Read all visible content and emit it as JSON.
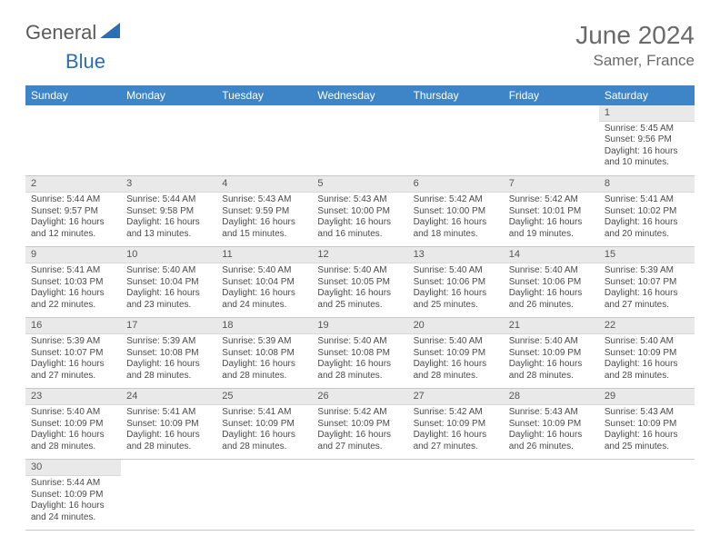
{
  "branding": {
    "logo_part1": "General",
    "logo_part2": "Blue",
    "logo_triangle_color": "#2a6fb5"
  },
  "title": {
    "month": "June 2024",
    "location": "Samer, France"
  },
  "colors": {
    "header_bg": "#3d85c6",
    "header_text": "#ffffff",
    "daynum_bg": "#e9e9e9",
    "cell_border": "#c8c8c8",
    "body_text": "#4a4a4a",
    "title_text": "#6a6a6a"
  },
  "weekdays": [
    "Sunday",
    "Monday",
    "Tuesday",
    "Wednesday",
    "Thursday",
    "Friday",
    "Saturday"
  ],
  "days": {
    "1": {
      "sunrise": "5:45 AM",
      "sunset": "9:56 PM",
      "daylight": "16 hours and 10 minutes."
    },
    "2": {
      "sunrise": "5:44 AM",
      "sunset": "9:57 PM",
      "daylight": "16 hours and 12 minutes."
    },
    "3": {
      "sunrise": "5:44 AM",
      "sunset": "9:58 PM",
      "daylight": "16 hours and 13 minutes."
    },
    "4": {
      "sunrise": "5:43 AM",
      "sunset": "9:59 PM",
      "daylight": "16 hours and 15 minutes."
    },
    "5": {
      "sunrise": "5:43 AM",
      "sunset": "10:00 PM",
      "daylight": "16 hours and 16 minutes."
    },
    "6": {
      "sunrise": "5:42 AM",
      "sunset": "10:00 PM",
      "daylight": "16 hours and 18 minutes."
    },
    "7": {
      "sunrise": "5:42 AM",
      "sunset": "10:01 PM",
      "daylight": "16 hours and 19 minutes."
    },
    "8": {
      "sunrise": "5:41 AM",
      "sunset": "10:02 PM",
      "daylight": "16 hours and 20 minutes."
    },
    "9": {
      "sunrise": "5:41 AM",
      "sunset": "10:03 PM",
      "daylight": "16 hours and 22 minutes."
    },
    "10": {
      "sunrise": "5:40 AM",
      "sunset": "10:04 PM",
      "daylight": "16 hours and 23 minutes."
    },
    "11": {
      "sunrise": "5:40 AM",
      "sunset": "10:04 PM",
      "daylight": "16 hours and 24 minutes."
    },
    "12": {
      "sunrise": "5:40 AM",
      "sunset": "10:05 PM",
      "daylight": "16 hours and 25 minutes."
    },
    "13": {
      "sunrise": "5:40 AM",
      "sunset": "10:06 PM",
      "daylight": "16 hours and 25 minutes."
    },
    "14": {
      "sunrise": "5:40 AM",
      "sunset": "10:06 PM",
      "daylight": "16 hours and 26 minutes."
    },
    "15": {
      "sunrise": "5:39 AM",
      "sunset": "10:07 PM",
      "daylight": "16 hours and 27 minutes."
    },
    "16": {
      "sunrise": "5:39 AM",
      "sunset": "10:07 PM",
      "daylight": "16 hours and 27 minutes."
    },
    "17": {
      "sunrise": "5:39 AM",
      "sunset": "10:08 PM",
      "daylight": "16 hours and 28 minutes."
    },
    "18": {
      "sunrise": "5:39 AM",
      "sunset": "10:08 PM",
      "daylight": "16 hours and 28 minutes."
    },
    "19": {
      "sunrise": "5:40 AM",
      "sunset": "10:08 PM",
      "daylight": "16 hours and 28 minutes."
    },
    "20": {
      "sunrise": "5:40 AM",
      "sunset": "10:09 PM",
      "daylight": "16 hours and 28 minutes."
    },
    "21": {
      "sunrise": "5:40 AM",
      "sunset": "10:09 PM",
      "daylight": "16 hours and 28 minutes."
    },
    "22": {
      "sunrise": "5:40 AM",
      "sunset": "10:09 PM",
      "daylight": "16 hours and 28 minutes."
    },
    "23": {
      "sunrise": "5:40 AM",
      "sunset": "10:09 PM",
      "daylight": "16 hours and 28 minutes."
    },
    "24": {
      "sunrise": "5:41 AM",
      "sunset": "10:09 PM",
      "daylight": "16 hours and 28 minutes."
    },
    "25": {
      "sunrise": "5:41 AM",
      "sunset": "10:09 PM",
      "daylight": "16 hours and 28 minutes."
    },
    "26": {
      "sunrise": "5:42 AM",
      "sunset": "10:09 PM",
      "daylight": "16 hours and 27 minutes."
    },
    "27": {
      "sunrise": "5:42 AM",
      "sunset": "10:09 PM",
      "daylight": "16 hours and 27 minutes."
    },
    "28": {
      "sunrise": "5:43 AM",
      "sunset": "10:09 PM",
      "daylight": "16 hours and 26 minutes."
    },
    "29": {
      "sunrise": "5:43 AM",
      "sunset": "10:09 PM",
      "daylight": "16 hours and 25 minutes."
    },
    "30": {
      "sunrise": "5:44 AM",
      "sunset": "10:09 PM",
      "daylight": "16 hours and 24 minutes."
    }
  },
  "labels": {
    "sunrise_prefix": "Sunrise: ",
    "sunset_prefix": "Sunset: ",
    "daylight_prefix": "Daylight: "
  },
  "grid": {
    "first_weekday_index": 6,
    "days_in_month": 30
  }
}
